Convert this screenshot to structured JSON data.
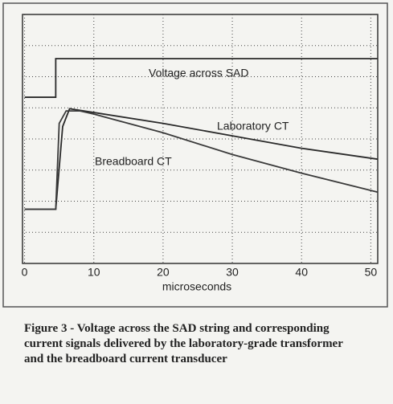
{
  "chart_data": {
    "type": "line",
    "series": [
      {
        "name": "Voltage across SAD",
        "color": "#2a2a2a",
        "x": [
          0,
          4.5,
          4.5,
          51
        ],
        "values": [
          5.34,
          5.34,
          6.58,
          6.58
        ]
      },
      {
        "name": "Laboratory CT",
        "color": "#2a2a2a",
        "x": [
          0,
          4.5,
          5.5,
          6.5,
          10,
          20,
          30,
          40,
          51
        ],
        "values": [
          1.74,
          1.74,
          4.4,
          4.97,
          4.85,
          4.5,
          4.1,
          3.7,
          3.35
        ]
      },
      {
        "name": "Breadboard CT",
        "color": "#3a3a3a",
        "x": [
          0,
          4.5,
          5,
          6,
          8,
          10,
          20,
          30,
          40,
          51
        ],
        "values": [
          1.74,
          1.74,
          4.5,
          4.9,
          4.9,
          4.8,
          4.2,
          3.5,
          2.9,
          2.29
        ]
      }
    ],
    "xlabel": "microseconds",
    "xlim": [
      -0.3,
      51
    ],
    "xticks": [
      0,
      10,
      20,
      30,
      40,
      50
    ],
    "ylim": [
      0,
      8
    ],
    "ygrid": [
      1,
      2,
      3,
      4,
      5,
      6,
      7
    ],
    "grid": true,
    "caption": "Figure 3 - Voltage across the SAD string and corresponding current signals delivered by the laboratory-grade transformer and the breadboard current transducer"
  }
}
